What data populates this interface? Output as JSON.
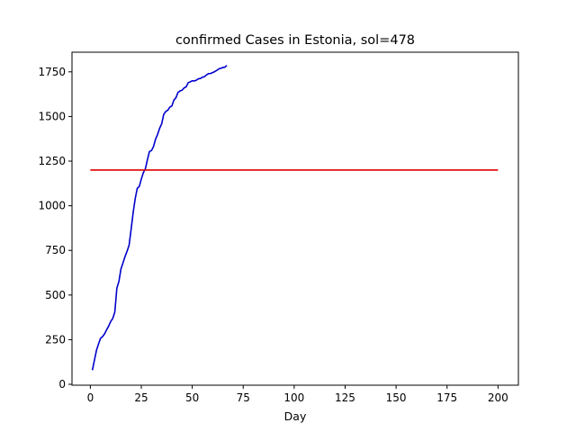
{
  "chart_data": {
    "type": "line",
    "title": "confirmed Cases in Estonia, sol=478",
    "xlabel": "Day",
    "ylabel": "",
    "xlim": [
      -9,
      210
    ],
    "ylim": [
      -5,
      1860
    ],
    "xticks": [
      0,
      25,
      50,
      75,
      100,
      125,
      150,
      175,
      200
    ],
    "yticks": [
      0,
      250,
      500,
      750,
      1000,
      1250,
      1500,
      1750
    ],
    "grid": false,
    "legend": "none",
    "series": [
      {
        "color": "#0000cc",
        "x": [
          1,
          2,
          3,
          4,
          5,
          6,
          7,
          8,
          9,
          10,
          11,
          12,
          13,
          14,
          15,
          16,
          17,
          18,
          19,
          20,
          21,
          22,
          23,
          24,
          25,
          26,
          27,
          28,
          29,
          30,
          31,
          32,
          33,
          34,
          35,
          36,
          37,
          38,
          39,
          40,
          41,
          42,
          43,
          44,
          45,
          46,
          47,
          48,
          49,
          50,
          51,
          52,
          53,
          54,
          55,
          56,
          57,
          58,
          59,
          60,
          61,
          62,
          63,
          64,
          65,
          66,
          67
        ],
        "values": [
          79,
          135,
          190,
          225,
          258,
          267,
          283,
          306,
          326,
          352,
          369,
          404,
          538,
          575,
          645,
          679,
          715,
          745,
          779,
          867,
          961,
          1039,
          1097,
          1108,
          1149,
          1185,
          1207,
          1258,
          1304,
          1309,
          1332,
          1373,
          1400,
          1434,
          1459,
          1512,
          1528,
          1535,
          1552,
          1559,
          1592,
          1605,
          1635,
          1643,
          1647,
          1660,
          1666,
          1689,
          1694,
          1700,
          1699,
          1703,
          1711,
          1713,
          1720,
          1723,
          1733,
          1740,
          1741,
          1746,
          1751,
          1758,
          1766,
          1770,
          1774,
          1776,
          1786
        ]
      },
      {
        "color": "#dd0000",
        "x": [
          0,
          200
        ],
        "values": [
          1200,
          1200
        ]
      }
    ]
  }
}
